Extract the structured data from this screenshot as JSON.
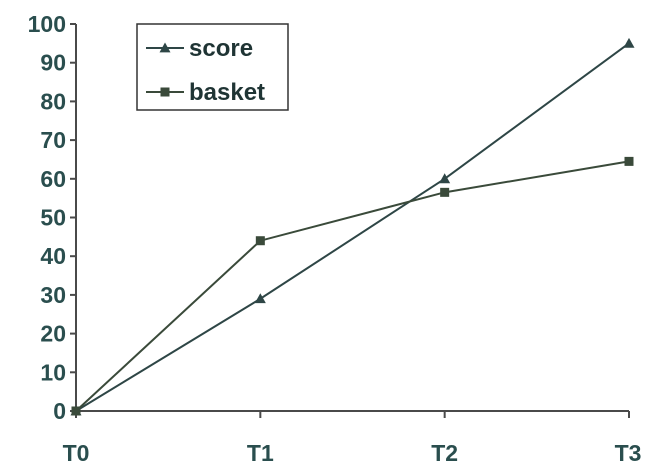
{
  "chart_data": {
    "type": "line",
    "categories": [
      "T0",
      "T1",
      "T2",
      "T3"
    ],
    "ylim": [
      0,
      100
    ],
    "yticks": [
      0,
      10,
      20,
      30,
      40,
      50,
      60,
      70,
      80,
      90,
      100
    ],
    "grid": false,
    "legend_position": "top-left",
    "series": [
      {
        "name": "score",
        "marker": "triangle",
        "color": "#2e4646",
        "values": [
          0,
          29,
          60,
          95
        ]
      },
      {
        "name": "basket",
        "marker": "square",
        "color": "#3a4a3a",
        "values": [
          0,
          44,
          56.5,
          64.5
        ]
      }
    ]
  }
}
